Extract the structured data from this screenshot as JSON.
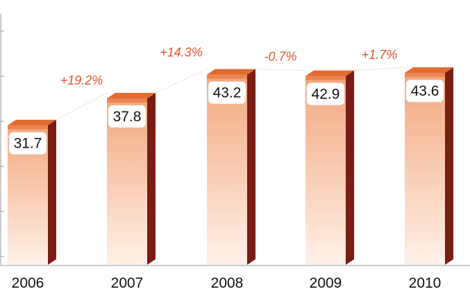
{
  "chart_data": {
    "type": "bar",
    "categories": [
      "2006",
      "2007",
      "2008",
      "2009",
      "2010"
    ],
    "values": [
      31.7,
      37.8,
      43.2,
      42.9,
      43.6
    ],
    "value_labels": [
      "31.7",
      "37.8",
      "43.2",
      "42.9",
      "43.6"
    ],
    "changes": [
      "+19.2%",
      "-0.7%",
      "+1.7%"
    ],
    "changes_between": [
      [
        0,
        1
      ],
      [
        2,
        3
      ],
      [
        3,
        4
      ]
    ],
    "changes_upper": [
      "+14.3%"
    ],
    "changes_upper_between": [
      [
        1,
        2
      ]
    ],
    "title": "",
    "xlabel": "",
    "ylabel": "",
    "ylim": [
      0,
      50
    ],
    "grid": false,
    "legend": "none",
    "colors": {
      "bar_top": "#f2a77e",
      "bar_bottom": "#fff1e8",
      "bar_cap": "#e46a2e",
      "bar_side": "#7a1d14",
      "change_text": "#e0522a",
      "axis": "#9a9a9a"
    }
  }
}
